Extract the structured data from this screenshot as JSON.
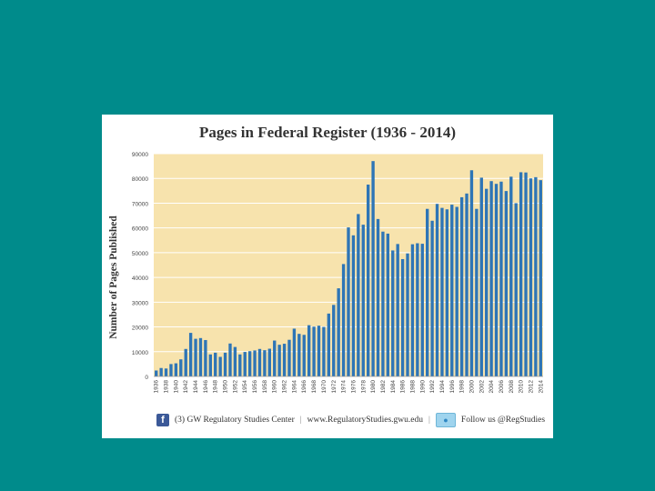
{
  "colors": {
    "background": "#008b8b",
    "plot_area": "#f7e3ad",
    "bar": "#2e75b6",
    "gridline": "#ffffff"
  },
  "chart_data": {
    "type": "bar",
    "title": "Pages in Federal Register (1936 - 2014)",
    "xlabel": "",
    "ylabel": "Number of Pages Published",
    "ylim": [
      0,
      90000
    ],
    "yticks": [
      0,
      10000,
      20000,
      30000,
      40000,
      50000,
      60000,
      70000,
      80000,
      90000
    ],
    "grid": true,
    "categories": [
      "1936",
      "1937",
      "1938",
      "1939",
      "1940",
      "1941",
      "1942",
      "1943",
      "1944",
      "1945",
      "1946",
      "1947",
      "1948",
      "1949",
      "1950",
      "1951",
      "1952",
      "1953",
      "1954",
      "1955",
      "1956",
      "1957",
      "1958",
      "1959",
      "1960",
      "1961",
      "1962",
      "1963",
      "1964",
      "1965",
      "1966",
      "1967",
      "1968",
      "1969",
      "1970",
      "1971",
      "1972",
      "1973",
      "1974",
      "1975",
      "1976",
      "1977",
      "1978",
      "1979",
      "1980",
      "1981",
      "1982",
      "1983",
      "1984",
      "1985",
      "1986",
      "1987",
      "1988",
      "1989",
      "1990",
      "1991",
      "1992",
      "1993",
      "1994",
      "1995",
      "1996",
      "1997",
      "1998",
      "1999",
      "2000",
      "2001",
      "2002",
      "2003",
      "2004",
      "2005",
      "2006",
      "2007",
      "2008",
      "2009",
      "2010",
      "2011",
      "2012",
      "2013",
      "2014"
    ],
    "tick_labels": [
      "1936",
      "1938",
      "1940",
      "1942",
      "1944",
      "1946",
      "1948",
      "1950",
      "1952",
      "1954",
      "1956",
      "1958",
      "1960",
      "1962",
      "1964",
      "1966",
      "1968",
      "1970",
      "1972",
      "1974",
      "1976",
      "1978",
      "1980",
      "1982",
      "1984",
      "1986",
      "1988",
      "1990",
      "1992",
      "1994",
      "1996",
      "1998",
      "2000",
      "2002",
      "2004",
      "2006",
      "2008",
      "2010",
      "2012",
      "2014"
    ],
    "values": [
      2400,
      3400,
      3200,
      5000,
      5300,
      6900,
      11100,
      17600,
      15200,
      15500,
      14700,
      8900,
      9600,
      7900,
      9600,
      13300,
      11900,
      8900,
      9900,
      10200,
      10500,
      11100,
      10600,
      11200,
      14500,
      12800,
      13200,
      14800,
      19300,
      17200,
      16800,
      20700,
      20100,
      20500,
      20000,
      25400,
      28900,
      35600,
      45400,
      60200,
      57000,
      65600,
      61300,
      77500,
      87000,
      63600,
      58500,
      57700,
      50900,
      53500,
      47400,
      49700,
      53400,
      53800,
      53600,
      67700,
      62900,
      69700,
      68100,
      67500,
      69400,
      68500,
      72400,
      73900,
      83300,
      67700,
      80300,
      75800,
      78900,
      77800,
      78700,
      74900,
      80700,
      70000,
      82500,
      82400,
      80000,
      80500,
      79300
    ],
    "series": [
      {
        "name": "Pages Published",
        "values_ref": "values"
      }
    ]
  },
  "footer": {
    "facebook_icon": "facebook-icon",
    "twitter_icon": "twitter-icon",
    "facebook_handle": "(3) GW Regulatory Studies Center",
    "separator_1": "|",
    "website": "www.RegulatoryStudies.gwu.edu",
    "separator_2": "|",
    "twitter_text": "Follow us @RegStudies"
  }
}
